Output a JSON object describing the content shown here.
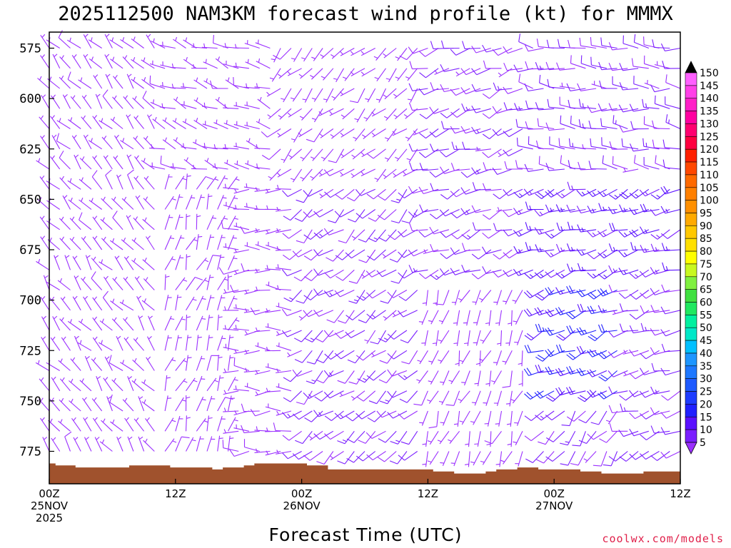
{
  "chart_data": {
    "type": "wind-barb-profile",
    "title": "2025112500 NAM3KM forecast wind profile (kt) for MMMX",
    "xlabel": "Forecast Time (UTC)",
    "ylabel": "",
    "x_unit": "forecast hour",
    "x_range": [
      0,
      60
    ],
    "y_unit": "hPa",
    "ylim": [
      785,
      567
    ],
    "yticks": [
      575,
      600,
      625,
      650,
      675,
      700,
      725,
      750,
      775
    ],
    "xticks": [
      {
        "hour": 0,
        "line1": "00Z",
        "line2": "25NOV",
        "line3": "2025"
      },
      {
        "hour": 12,
        "line1": "12Z",
        "line2": "",
        "line3": ""
      },
      {
        "hour": 24,
        "line1": "00Z",
        "line2": "26NOV",
        "line3": ""
      },
      {
        "hour": 36,
        "line1": "12Z",
        "line2": "",
        "line3": ""
      },
      {
        "hour": 48,
        "line1": "00Z",
        "line2": "27NOV",
        "line3": ""
      },
      {
        "hour": 60,
        "line1": "12Z",
        "line2": "",
        "line3": ""
      }
    ],
    "colorbar": {
      "label_unit": "kt",
      "levels": [
        5,
        10,
        15,
        20,
        25,
        30,
        35,
        40,
        45,
        50,
        55,
        60,
        65,
        70,
        75,
        80,
        85,
        90,
        95,
        100,
        105,
        110,
        115,
        120,
        125,
        130,
        135,
        140,
        145,
        150
      ],
      "colors": [
        "#9b30ff",
        "#7b1fff",
        "#5a10ff",
        "#2020ff",
        "#1e3cff",
        "#1e5aff",
        "#1e78ff",
        "#1e96ff",
        "#00c0ff",
        "#00e8c8",
        "#00f0a0",
        "#20e860",
        "#40e040",
        "#80f040",
        "#c8f820",
        "#ffff00",
        "#ffe000",
        "#ffc800",
        "#ffaa00",
        "#ff9000",
        "#ff8000",
        "#ff6a00",
        "#ff4800",
        "#ff2000",
        "#ff0040",
        "#ff0070",
        "#ff00a0",
        "#ff20c8",
        "#ff40e8",
        "#ff60ff"
      ],
      "arrow_low_color": "#9b30ff",
      "arrow_high_color": "#000000"
    },
    "terrain_color": "#a0522d",
    "terrain_top_hpa": [
      {
        "hour": 0,
        "p": 781
      },
      {
        "hour": 0.6,
        "p": 781
      },
      {
        "hour": 0.6,
        "p": 782
      },
      {
        "hour": 2.5,
        "p": 782
      },
      {
        "hour": 2.5,
        "p": 783
      },
      {
        "hour": 7.6,
        "p": 783
      },
      {
        "hour": 7.6,
        "p": 782
      },
      {
        "hour": 11.5,
        "p": 782
      },
      {
        "hour": 11.5,
        "p": 783
      },
      {
        "hour": 15.5,
        "p": 783
      },
      {
        "hour": 15.5,
        "p": 784
      },
      {
        "hour": 16.5,
        "p": 784
      },
      {
        "hour": 16.5,
        "p": 783
      },
      {
        "hour": 18.5,
        "p": 783
      },
      {
        "hour": 18.5,
        "p": 782
      },
      {
        "hour": 19.5,
        "p": 782
      },
      {
        "hour": 19.5,
        "p": 781
      },
      {
        "hour": 24.5,
        "p": 781
      },
      {
        "hour": 24.5,
        "p": 782
      },
      {
        "hour": 26.5,
        "p": 782
      },
      {
        "hour": 26.5,
        "p": 784
      },
      {
        "hour": 36.5,
        "p": 784
      },
      {
        "hour": 36.5,
        "p": 785
      },
      {
        "hour": 38.5,
        "p": 785
      },
      {
        "hour": 38.5,
        "p": 786
      },
      {
        "hour": 41.5,
        "p": 786
      },
      {
        "hour": 41.5,
        "p": 785
      },
      {
        "hour": 42.5,
        "p": 785
      },
      {
        "hour": 42.5,
        "p": 784
      },
      {
        "hour": 44.5,
        "p": 784
      },
      {
        "hour": 44.5,
        "p": 783
      },
      {
        "hour": 46.5,
        "p": 783
      },
      {
        "hour": 46.5,
        "p": 784
      },
      {
        "hour": 50.5,
        "p": 784
      },
      {
        "hour": 50.5,
        "p": 785
      },
      {
        "hour": 52.5,
        "p": 785
      },
      {
        "hour": 52.5,
        "p": 786
      },
      {
        "hour": 56.5,
        "p": 786
      },
      {
        "hour": 56.5,
        "p": 785
      },
      {
        "hour": 60,
        "p": 785
      }
    ],
    "barb_pressure_step_hpa": 10,
    "barb_pressure_offset_hpa": 5,
    "wind_regimes": [
      {
        "h0": 0,
        "h1": 11,
        "p0": 560,
        "p1": 790,
        "dir_deg": 320,
        "speed_kt": 5
      },
      {
        "h0": 11,
        "h1": 22,
        "p0": 560,
        "p1": 640,
        "dir_deg": 290,
        "speed_kt": 5
      },
      {
        "h0": 11,
        "h1": 18,
        "p0": 640,
        "p1": 790,
        "dir_deg": 20,
        "speed_kt": 5
      },
      {
        "h0": 18,
        "h1": 24,
        "p0": 640,
        "p1": 790,
        "dir_deg": 270,
        "speed_kt": 5
      },
      {
        "h0": 22,
        "h1": 36,
        "p0": 560,
        "p1": 640,
        "dir_deg": 225,
        "speed_kt": 5
      },
      {
        "h0": 24,
        "h1": 36,
        "p0": 640,
        "p1": 790,
        "dir_deg": 230,
        "speed_kt": 10
      },
      {
        "h0": 36,
        "h1": 46,
        "p0": 560,
        "p1": 690,
        "dir_deg": 250,
        "speed_kt": 10
      },
      {
        "h0": 36,
        "h1": 46,
        "p0": 690,
        "p1": 790,
        "dir_deg": 200,
        "speed_kt": 5
      },
      {
        "h0": 46,
        "h1": 61,
        "p0": 560,
        "p1": 640,
        "dir_deg": 275,
        "speed_kt": 10
      },
      {
        "h0": 46,
        "h1": 61,
        "p0": 640,
        "p1": 690,
        "dir_deg": 250,
        "speed_kt": 15
      },
      {
        "h0": 47,
        "h1": 55,
        "p0": 690,
        "p1": 750,
        "dir_deg": 245,
        "speed_kt": 20
      },
      {
        "h0": 55,
        "h1": 61,
        "p0": 690,
        "p1": 790,
        "dir_deg": 250,
        "speed_kt": 10
      },
      {
        "h0": 47,
        "h1": 55,
        "p0": 750,
        "p1": 790,
        "dir_deg": 220,
        "speed_kt": 10
      }
    ]
  },
  "credit": "coolwx.com/models",
  "credit_color": "#e0204a"
}
